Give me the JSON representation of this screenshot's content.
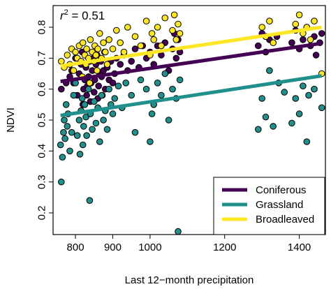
{
  "chart_data": {
    "type": "scatter",
    "xlabel": "Last 12−month precipitation",
    "ylabel": "NDVI",
    "annotation": {
      "prefix": "r",
      "superscript": "2",
      "text": " = 0.51"
    },
    "xlim": [
      740,
      1470
    ],
    "ylim": [
      0.13,
      0.87
    ],
    "x_ticks": [
      800,
      900,
      1000,
      1200,
      1400
    ],
    "x_tick_labels": [
      "800",
      "900",
      "1000",
      "1200",
      "1400"
    ],
    "y_ticks": [
      0.2,
      0.3,
      0.4,
      0.5,
      0.6,
      0.7,
      0.8
    ],
    "y_tick_labels": [
      "0.2",
      "0.3",
      "0.4",
      "0.5",
      "0.6",
      "0.7",
      "0.8"
    ],
    "grid": false,
    "legend_position": "bottom-right",
    "series": [
      {
        "name": "Coniferous",
        "color": "#440154",
        "trend": {
          "x": [
            760,
            1460
          ],
          "y": [
            0.625,
            0.748
          ]
        },
        "x": [
          762,
          775,
          785,
          790,
          795,
          800,
          805,
          810,
          815,
          818,
          820,
          822,
          825,
          828,
          830,
          832,
          835,
          838,
          840,
          842,
          845,
          848,
          850,
          852,
          855,
          858,
          860,
          862,
          865,
          868,
          870,
          872,
          875,
          878,
          880,
          885,
          890,
          895,
          900,
          905,
          910,
          920,
          930,
          940,
          950,
          960,
          970,
          980,
          990,
          1000,
          1010,
          1020,
          1030,
          1040,
          1050,
          1060,
          1065,
          1070,
          1075,
          1080,
          1290,
          1300,
          1310,
          1320,
          1340,
          1380,
          1390,
          1400,
          1410,
          1420,
          1430,
          1440,
          1445,
          1455,
          1460
        ],
        "y": [
          0.6,
          0.62,
          0.64,
          0.66,
          0.62,
          0.7,
          0.58,
          0.65,
          0.68,
          0.72,
          0.55,
          0.6,
          0.63,
          0.67,
          0.58,
          0.61,
          0.64,
          0.69,
          0.56,
          0.62,
          0.66,
          0.7,
          0.59,
          0.63,
          0.68,
          0.71,
          0.57,
          0.61,
          0.65,
          0.69,
          0.64,
          0.58,
          0.66,
          0.72,
          0.6,
          0.67,
          0.63,
          0.69,
          0.62,
          0.65,
          0.7,
          0.68,
          0.71,
          0.66,
          0.69,
          0.73,
          0.67,
          0.74,
          0.7,
          0.72,
          0.68,
          0.74,
          0.71,
          0.75,
          0.66,
          0.73,
          0.78,
          0.7,
          0.76,
          0.72,
          0.74,
          0.78,
          0.72,
          0.76,
          0.77,
          0.75,
          0.79,
          0.73,
          0.76,
          0.8,
          0.74,
          0.77,
          0.71,
          0.75,
          0.78
        ]
      },
      {
        "name": "Grassland",
        "color": "#21908C",
        "trend": {
          "x": [
            760,
            1460
          ],
          "y": [
            0.515,
            0.643
          ]
        },
        "x": [
          760,
          762,
          765,
          768,
          770,
          772,
          775,
          778,
          780,
          785,
          790,
          795,
          800,
          805,
          810,
          812,
          815,
          818,
          820,
          822,
          825,
          828,
          830,
          835,
          838,
          840,
          845,
          850,
          855,
          860,
          865,
          870,
          875,
          880,
          885,
          890,
          895,
          900,
          905,
          915,
          925,
          935,
          950,
          960,
          975,
          990,
          1000,
          1005,
          1010,
          1020,
          1030,
          1040,
          1050,
          1060,
          1070,
          1075,
          1080,
          1290,
          1300,
          1310,
          1320,
          1330,
          1345,
          1360,
          1380,
          1390,
          1400,
          1410,
          1420,
          1425,
          1440,
          1460
        ],
        "y": [
          0.42,
          0.3,
          0.38,
          0.46,
          0.5,
          0.44,
          0.55,
          0.48,
          0.52,
          0.4,
          0.46,
          0.58,
          0.62,
          0.45,
          0.5,
          0.39,
          0.53,
          0.57,
          0.42,
          0.48,
          0.55,
          0.51,
          0.45,
          0.6,
          0.24,
          0.52,
          0.47,
          0.56,
          0.49,
          0.54,
          0.43,
          0.58,
          0.5,
          0.53,
          0.47,
          0.6,
          0.55,
          0.52,
          0.57,
          0.61,
          0.54,
          0.62,
          0.58,
          0.46,
          0.63,
          0.6,
          0.43,
          0.52,
          0.55,
          0.62,
          0.58,
          0.65,
          0.5,
          0.6,
          0.57,
          0.14,
          0.63,
          0.47,
          0.57,
          0.51,
          0.66,
          0.48,
          0.62,
          0.59,
          0.49,
          0.57,
          0.52,
          0.61,
          0.43,
          0.58,
          0.6,
          0.54
        ]
      },
      {
        "name": "Broadleaved",
        "color": "#FDE725",
        "trend": {
          "x": [
            760,
            1460
          ],
          "y": [
            0.675,
            0.8
          ]
        },
        "x": [
          762,
          770,
          778,
          785,
          790,
          795,
          800,
          805,
          810,
          815,
          818,
          820,
          825,
          828,
          830,
          835,
          838,
          840,
          845,
          850,
          852,
          855,
          858,
          860,
          865,
          870,
          875,
          880,
          885,
          890,
          900,
          910,
          920,
          930,
          940,
          960,
          975,
          990,
          1000,
          1005,
          1010,
          1020,
          1030,
          1040,
          1060,
          1065,
          1070,
          1075,
          1080,
          1300,
          1310,
          1320,
          1330,
          1390,
          1400,
          1410,
          1420,
          1430,
          1440,
          1460
        ],
        "y": [
          0.69,
          0.67,
          0.71,
          0.68,
          0.73,
          0.66,
          0.72,
          0.7,
          0.74,
          0.69,
          0.64,
          0.75,
          0.71,
          0.68,
          0.73,
          0.7,
          0.62,
          0.76,
          0.72,
          0.69,
          0.74,
          0.71,
          0.66,
          0.73,
          0.78,
          0.7,
          0.75,
          0.72,
          0.68,
          0.76,
          0.73,
          0.79,
          0.75,
          0.72,
          0.8,
          0.77,
          0.74,
          0.82,
          0.71,
          0.78,
          0.76,
          0.8,
          0.74,
          0.83,
          0.79,
          0.84,
          0.76,
          0.81,
          0.78,
          0.8,
          0.77,
          0.82,
          0.75,
          0.81,
          0.84,
          0.78,
          0.8,
          0.76,
          0.82,
          0.65
        ]
      }
    ]
  }
}
